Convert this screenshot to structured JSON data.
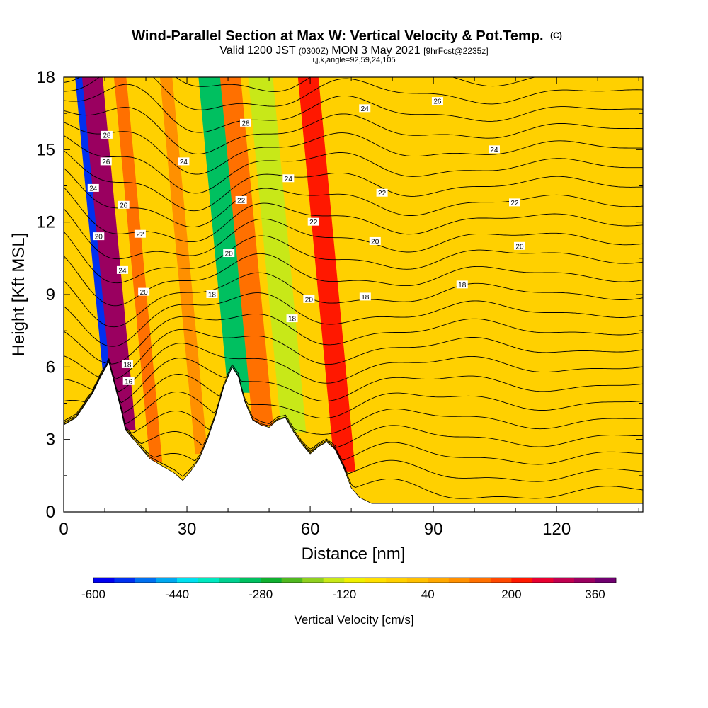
{
  "chart_data": {
    "type": "heatmap",
    "title_main": "Wind-Parallel Section at Max W: Vertical Velocity & Pot.Temp.",
    "title_mark": "(C)",
    "line2_a": "Valid 1200 JST",
    "line2_b": "(0300Z)",
    "line2_c": "MON 3 May 2021",
    "line2_d": "[9hrFcst@2235z]",
    "line3": "i,j,k,angle=92,59,24,105",
    "xlabel": "Distance [nm]",
    "ylabel": "Height [Kft MSL]",
    "xlim": [
      0,
      141
    ],
    "ylim": [
      0,
      18
    ],
    "x_ticks": [
      "0",
      "30",
      "60",
      "90",
      "120"
    ],
    "y_ticks": [
      "0",
      "3",
      "6",
      "9",
      "12",
      "15",
      "18"
    ],
    "colorbar": {
      "label": "Vertical Velocity [cm/s]",
      "ticks": [
        "-600",
        "-440",
        "-280",
        "-120",
        "40",
        "200",
        "360"
      ],
      "colors": [
        "#0000f0",
        "#0030f0",
        "#0070f0",
        "#00a8f0",
        "#00e0f0",
        "#00e8c0",
        "#00d090",
        "#00c060",
        "#10b030",
        "#50b820",
        "#90d020",
        "#c8e818",
        "#f0f000",
        "#ffe000",
        "#ffd000",
        "#ffc000",
        "#ffa800",
        "#ff9000",
        "#ff7000",
        "#ff4800",
        "#ff1800",
        "#e80030",
        "#c00050",
        "#9a0060",
        "#700070"
      ]
    },
    "velocity_bands": [
      {
        "x_low": 10,
        "x_high": 16,
        "value": -560
      },
      {
        "x_low": 12.5,
        "x_high": 17.5,
        "value": 330
      },
      {
        "x_low": 40,
        "x_high": 47,
        "value": -290
      },
      {
        "x_low": 46,
        "x_high": 51,
        "value": 120
      },
      {
        "x_low": 53,
        "x_high": 59,
        "value": -160
      },
      {
        "x_low": 66,
        "x_high": 71,
        "value": 230
      },
      {
        "x_low": 21,
        "x_high": 24,
        "value": 130
      },
      {
        "x_low": 32,
        "x_high": 35,
        "value": 110
      }
    ],
    "terrain": [
      [
        0,
        3.6
      ],
      [
        3,
        3.9
      ],
      [
        5,
        4.4
      ],
      [
        7,
        4.9
      ],
      [
        9,
        5.6
      ],
      [
        11,
        6.2
      ],
      [
        12.5,
        5.2
      ],
      [
        14,
        4.2
      ],
      [
        15,
        3.4
      ],
      [
        17,
        3.0
      ],
      [
        19,
        2.6
      ],
      [
        21,
        2.2
      ],
      [
        24,
        1.9
      ],
      [
        27,
        1.6
      ],
      [
        29,
        1.3
      ],
      [
        31,
        1.7
      ],
      [
        33,
        2.2
      ],
      [
        35,
        3.0
      ],
      [
        37,
        4.0
      ],
      [
        39,
        5.2
      ],
      [
        41,
        6.0
      ],
      [
        42.5,
        5.6
      ],
      [
        44,
        4.6
      ],
      [
        46,
        3.8
      ],
      [
        48,
        3.6
      ],
      [
        50,
        3.5
      ],
      [
        52,
        3.8
      ],
      [
        54,
        3.9
      ],
      [
        56,
        3.3
      ],
      [
        58,
        2.8
      ],
      [
        60,
        2.4
      ],
      [
        62,
        2.7
      ],
      [
        64,
        2.9
      ],
      [
        66,
        2.6
      ],
      [
        68,
        1.9
      ],
      [
        70,
        1.0
      ],
      [
        72,
        0.6
      ],
      [
        75,
        0.35
      ],
      [
        141,
        0.35
      ]
    ],
    "theta_labels": [
      {
        "text": "28",
        "x": 10.5,
        "y": 15.6
      },
      {
        "text": "26",
        "x": 10.3,
        "y": 14.5
      },
      {
        "text": "24",
        "x": 7.2,
        "y": 13.4
      },
      {
        "text": "20",
        "x": 8.5,
        "y": 11.4
      },
      {
        "text": "26",
        "x": 14.6,
        "y": 12.7
      },
      {
        "text": "22",
        "x": 18.6,
        "y": 11.5
      },
      {
        "text": "24",
        "x": 14.3,
        "y": 10.0
      },
      {
        "text": "20",
        "x": 19.5,
        "y": 9.1
      },
      {
        "text": "18",
        "x": 15.5,
        "y": 6.1
      },
      {
        "text": "16",
        "x": 15.8,
        "y": 5.4
      },
      {
        "text": "24",
        "x": 29.2,
        "y": 14.5
      },
      {
        "text": "28",
        "x": 44.3,
        "y": 16.1
      },
      {
        "text": "22",
        "x": 43.2,
        "y": 12.9
      },
      {
        "text": "20",
        "x": 40.2,
        "y": 10.7
      },
      {
        "text": "18",
        "x": 36.1,
        "y": 9.0
      },
      {
        "text": "24",
        "x": 54.7,
        "y": 13.8
      },
      {
        "text": "22",
        "x": 60.8,
        "y": 12.0
      },
      {
        "text": "20",
        "x": 59.7,
        "y": 8.8
      },
      {
        "text": "18",
        "x": 55.6,
        "y": 8.0
      },
      {
        "text": "24",
        "x": 73.3,
        "y": 16.7
      },
      {
        "text": "22",
        "x": 77.5,
        "y": 13.2
      },
      {
        "text": "20",
        "x": 75.8,
        "y": 11.2
      },
      {
        "text": "18",
        "x": 73.4,
        "y": 8.9
      },
      {
        "text": "26",
        "x": 91.0,
        "y": 17.0
      },
      {
        "text": "24",
        "x": 104.8,
        "y": 15.0
      },
      {
        "text": "22",
        "x": 109.8,
        "y": 12.8
      },
      {
        "text": "20",
        "x": 111.0,
        "y": 11.0
      },
      {
        "text": "18",
        "x": 97.0,
        "y": 9.4
      }
    ]
  }
}
